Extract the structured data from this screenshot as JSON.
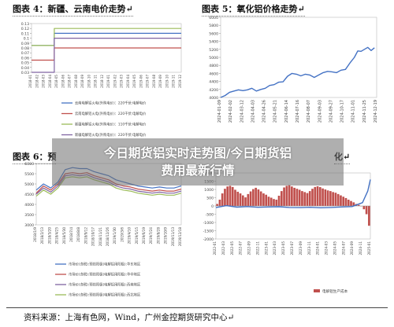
{
  "banner": {
    "line1": "今日期货铝实时走势图/今日期货铝",
    "line2": "费用最新行情"
  },
  "source_note": "资料来源：上海有色网，Wind，广州金控期货研究中心↵",
  "panel_titles": {
    "p4": "图表 4：新疆、云南电价走势↵",
    "p5": "图表 5：氧化铝价格走势↵",
    "p6": "图表 6：预",
    "p7": "化↵"
  },
  "colors": {
    "blue": "#4472c4",
    "red": "#c0504d",
    "green": "#9bbb59",
    "purple": "#8064a2",
    "gray": "#a6a6a6",
    "dark": "#333333"
  },
  "chart_data": [
    {
      "id": "p4",
      "type": "line",
      "y_ticks": [
        "0.13",
        "0.12",
        "0.11",
        "0.1",
        "0.09",
        "0.08",
        "0.07",
        "0.06",
        "0.05",
        "0.04",
        "0.03"
      ],
      "ylim": [
        0.03,
        0.13
      ],
      "x_tick_labels": [
        "2018-01",
        "2018-02",
        "2018-03",
        "2018-04",
        "2018-05",
        "2018-06",
        "2018-07",
        "2018-08",
        "2018-09",
        "2018-10",
        "2018-11",
        "2018-12",
        "2019-01",
        "2019-02",
        "2019-03",
        "2019-04",
        "2019-05",
        "2019-06",
        "2019-07",
        "2019-08",
        "2019-09",
        "2019-10",
        "2019-11",
        "2019-12"
      ],
      "series": [
        {
          "name": "云南电解铝火电(外购电价)：220千伏:电解电价",
          "color": "#4472c4",
          "x": [
            0,
            3.5,
            3.5,
            23
          ],
          "y": [
            0.085,
            0.085,
            0.11,
            0.11
          ]
        },
        {
          "name": "云南电解铝火电(外购电价)：220千伏:电解电价",
          "color": "#c0504d",
          "x": [
            0,
            3.5,
            3.5,
            23
          ],
          "y": [
            0.055,
            0.055,
            0.08,
            0.08
          ]
        },
        {
          "name": "新疆电解铝火电(外购电价)：110千伏:电解电价",
          "color": "#9bbb59",
          "x": [
            0,
            3.5,
            3.5,
            23
          ],
          "y": [
            0.085,
            0.085,
            0.12,
            0.12
          ]
        },
        {
          "name": "新疆电解铝火电(外购电价)：220千伏:电解电价",
          "color": "#8064a2",
          "x": [
            0,
            3.5,
            3.5,
            23
          ],
          "y": [
            0.03,
            0.03,
            0.1,
            0.1
          ]
        }
      ]
    },
    {
      "id": "p5",
      "type": "line",
      "y_ticks": [
        "6000",
        "5800",
        "5600",
        "5400",
        "5200",
        "5000",
        "4800",
        "4600",
        "4400",
        "4200",
        "4000"
      ],
      "ylim": [
        4000,
        6000
      ],
      "x_tick_labels": [
        "2024-01-09",
        "2024-02-02",
        "2024-03-12",
        "2024-04-03",
        "2024-04-26",
        "2024-05-21",
        "2024-06-14",
        "2024-07-16",
        "2024-08-07",
        "2024-09-03",
        "2024-09-27",
        "2024-10-17",
        "2024-11-01",
        "2024-11-25",
        "2024-12-19"
      ],
      "x_range": [
        0,
        14
      ],
      "series": [
        {
          "name": "",
          "color": "#4472c4",
          "x": [
            0,
            0.4,
            0.8,
            1.2,
            1.6,
            2,
            2.4,
            2.8,
            3.2,
            3.6,
            4,
            4.4,
            4.8,
            5.2,
            5.6,
            6,
            6.4,
            6.8,
            7.2,
            7.6,
            8,
            8.4,
            8.8,
            9.2,
            9.6,
            10,
            10.4,
            10.8,
            11.2,
            11.6,
            12,
            12.3,
            12.6,
            12.9,
            13.2,
            13.5,
            13.8
          ],
          "y": [
            4000,
            4050,
            4130,
            4160,
            4190,
            4170,
            4190,
            4230,
            4160,
            4200,
            4230,
            4300,
            4320,
            4380,
            4390,
            4530,
            4600,
            4580,
            4540,
            4580,
            4560,
            4500,
            4560,
            4620,
            4650,
            4640,
            4620,
            4680,
            4700,
            4860,
            5000,
            5160,
            5150,
            5200,
            5250,
            5170,
            5240
          ]
        }
      ]
    },
    {
      "id": "p6",
      "type": "line",
      "y_ticks": [
        "6000",
        "5500",
        "5000",
        "4500",
        "4000",
        "3500",
        "3000"
      ],
      "ylim": [
        3000,
        6000
      ],
      "x_tick_labels": [
        "2018/1/9",
        "2018/2/13",
        "2018/3/20",
        "2018/4/25",
        "2018/5/30",
        "2018/7/4",
        "2018/8/8",
        "2018/9/12",
        "2018/10/17",
        "2018/11/21",
        "2018/12/26",
        "2019/1/30",
        "2019/3/6",
        "2019/4/10",
        "2019/5/15",
        "2019/6/19",
        "2019/7/24",
        "2019/8/28",
        "2019/10/9",
        "2019/11/13",
        "2019/12/18"
      ],
      "x_range": [
        0,
        20
      ],
      "series": [
        {
          "name": "市场价(含税):预焙阳极(电解铝用阳极):华东地区",
          "color": "#4472c4",
          "x": [
            0,
            1,
            2,
            3,
            4,
            5,
            6,
            7,
            8,
            9,
            10,
            11,
            12,
            13,
            14,
            15,
            16,
            17,
            18,
            19,
            20
          ],
          "y": [
            4700,
            5000,
            4800,
            5100,
            5700,
            5800,
            5750,
            5750,
            5600,
            5500,
            5400,
            5200,
            5100,
            5000,
            4900,
            4850,
            4800,
            4850,
            4800,
            4800,
            4900
          ]
        },
        {
          "name": "市场价(含税):预焙阳极(电解铝用阳极):华中地区",
          "color": "#c0504d",
          "x": [
            0,
            1,
            2,
            3,
            4,
            5,
            6,
            7,
            8,
            9,
            10,
            11,
            12,
            13,
            14,
            15,
            16,
            17,
            18,
            19,
            20
          ],
          "y": [
            4550,
            4900,
            4700,
            5000,
            5500,
            5550,
            5500,
            5550,
            5400,
            5300,
            5200,
            5000,
            4900,
            4850,
            4750,
            4700,
            4650,
            4700,
            4650,
            4650,
            4750
          ]
        },
        {
          "name": "市场价(含税):预焙阳极(电解铝用阳极):西南地区",
          "color": "#8064a2",
          "x": [
            0,
            1,
            2,
            3,
            4,
            5,
            6,
            7,
            8,
            9,
            10,
            11,
            12,
            13,
            14,
            15,
            16,
            17,
            18,
            19,
            20
          ],
          "y": [
            4500,
            4800,
            4600,
            4900,
            5400,
            5450,
            5400,
            5450,
            5300,
            5200,
            5100,
            4900,
            4800,
            4750,
            4650,
            4600,
            4550,
            4600,
            4550,
            4550,
            4650
          ]
        },
        {
          "name": "市场价(含税):预焙阳极(电解铝用阳极):西北地区",
          "color": "#9bbb59",
          "x": [
            0,
            1,
            2,
            3,
            4,
            5,
            6,
            7,
            8,
            9,
            10,
            11,
            12,
            13,
            14,
            15,
            16,
            17,
            18,
            19,
            20
          ],
          "y": [
            4400,
            4700,
            4500,
            4800,
            5300,
            5350,
            5300,
            5350,
            5200,
            5100,
            5000,
            4800,
            4700,
            4650,
            4550,
            4500,
            4450,
            4500,
            4450,
            4450,
            4550
          ]
        }
      ]
    },
    {
      "id": "p7",
      "type": "bar",
      "y_ticks": [
        "2000",
        "1500",
        "1000",
        "500",
        "0",
        "-500",
        "-1000",
        "-1500",
        "-2000"
      ],
      "ylim": [
        -2000,
        2000
      ],
      "x_tick_labels": [
        "2022-01",
        "2022-03",
        "2022-05",
        "2022-07",
        "2022-09",
        "2022-11",
        "2023-01",
        "2023-03",
        "2023-05",
        "2023-07",
        "2023-09",
        "2023-11",
        "2024-01",
        "2024-03",
        "2024-05",
        "2024-07",
        "2024-09",
        "2024-11",
        "2025-01"
      ],
      "series": [
        {
          "name": "电解铝生产成本",
          "color": "#c0504d",
          "values": [
            120,
            380,
            760,
            1040,
            1180,
            1220,
            1150,
            980,
            860,
            760,
            640,
            520,
            720,
            880,
            1020,
            1100,
            1000,
            880,
            760,
            680,
            560,
            500,
            420,
            380,
            620,
            900,
            1120,
            1220,
            1260,
            1180,
            1100,
            1040,
            980,
            900,
            840,
            780,
            900,
            1040,
            1150,
            1190,
            1140,
            1060,
            1000,
            940,
            900,
            840,
            800,
            720,
            640,
            560,
            480,
            380,
            300,
            220,
            120,
            60,
            -20,
            -200,
            -500,
            -1200
          ]
        },
        {
          "name": "",
          "color": "#4472c4",
          "x": [
            0,
            4,
            8,
            12,
            16,
            20,
            24,
            28,
            32,
            36,
            40,
            44,
            48,
            52,
            56,
            58,
            59
          ],
          "y": [
            -100,
            20,
            -70,
            -40,
            -80,
            -60,
            -50,
            -90,
            -100,
            -80,
            -110,
            -90,
            -60,
            -40,
            200,
            900,
            1600
          ]
        }
      ]
    }
  ]
}
